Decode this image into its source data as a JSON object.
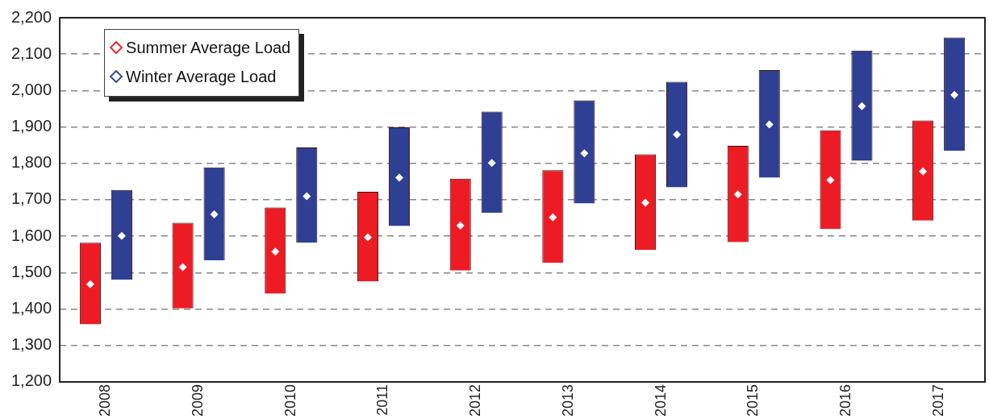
{
  "chart_data": {
    "type": "bar",
    "categories": [
      "2008",
      "2009",
      "2010",
      "2011",
      "2012",
      "2013",
      "2014",
      "2015",
      "2016",
      "2017"
    ],
    "series": [
      {
        "name": "Summer Average Load",
        "color": "#ed1c24",
        "base": [
          1358,
          1402,
          1442,
          1476,
          1506,
          1527,
          1562,
          1584,
          1620,
          1643
        ],
        "values": [
          224,
          235,
          237,
          246,
          252,
          254,
          263,
          264,
          271,
          275
        ]
      },
      {
        "name": "Winter Average Load",
        "color": "#2e3f94",
        "base": [
          1481,
          1534,
          1582,
          1628,
          1664,
          1690,
          1734,
          1761,
          1807,
          1835
        ],
        "values": [
          246,
          255,
          262,
          271,
          278,
          283,
          290,
          295,
          303,
          311
        ]
      },
      {
        "type": "scatter",
        "color": "#ffffff",
        "marker": "diamond",
        "values": [
          1468,
          1515,
          1558,
          1597,
          1629,
          1652,
          1692,
          1715,
          1754,
          1778
        ]
      },
      {
        "type": "scatter",
        "color": "#ffffff",
        "marker": "diamond",
        "values": [
          1601,
          1660,
          1710,
          1761,
          1801,
          1828,
          1879,
          1907,
          1957,
          1988
        ]
      }
    ],
    "ylim": [
      1200,
      2200
    ],
    "yticks": [
      {
        "value": 1200,
        "label": "1,200"
      },
      {
        "value": 1300,
        "label": "1,300"
      },
      {
        "value": 1400,
        "label": "1,400"
      },
      {
        "value": 1500,
        "label": "1,500"
      },
      {
        "value": 1600,
        "label": "1,600"
      },
      {
        "value": 1700,
        "label": "1,700"
      },
      {
        "value": 1800,
        "label": "1,800"
      },
      {
        "value": 1900,
        "label": "1,900"
      },
      {
        "value": 2000,
        "label": "2,000"
      },
      {
        "value": 2100,
        "label": "2,100"
      },
      {
        "value": 2200,
        "label": "2,200"
      }
    ],
    "grid": "y",
    "legend": "top left"
  }
}
